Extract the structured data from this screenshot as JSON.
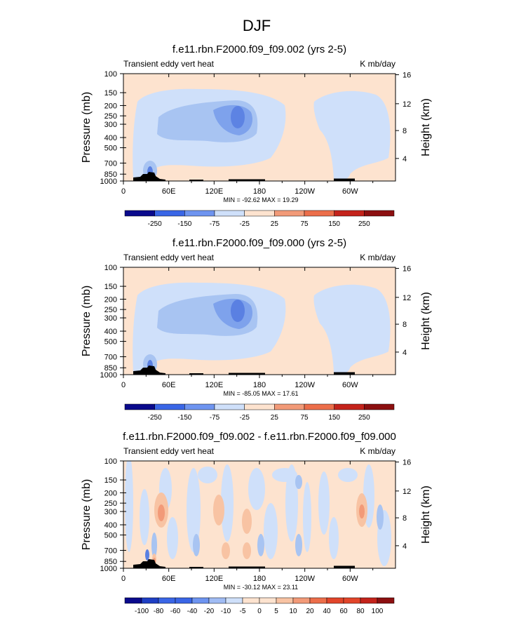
{
  "figure": {
    "title": "DJF"
  },
  "chart_data": [
    {
      "type": "heatmap",
      "title": "f.e11.rbn.F2000.f09_f09.002 (yrs 2-5)",
      "left_label": "Transient eddy vert heat",
      "right_label": "K mb/day",
      "ylabel": "Pressure (mb)",
      "ylabel_right": "Height (km)",
      "x_ticks": [
        "0",
        "60E",
        "120E",
        "180",
        "120W",
        "60W"
      ],
      "y_ticks": [
        "100",
        "150",
        "200",
        "250",
        "300",
        "400",
        "500",
        "700",
        "850",
        "1000"
      ],
      "y_ticks_right": [
        "16",
        "12",
        "8",
        "4"
      ],
      "stats": "MIN = -92.62  MAX = 19.29",
      "colorbar_labels": [
        "-250",
        "-150",
        "-75",
        "-25",
        "25",
        "75",
        "150",
        "250"
      ],
      "field": "mean"
    },
    {
      "type": "heatmap",
      "title": "f.e11.rbn.F2000.f09_f09.000 (yrs 2-5)",
      "left_label": "Transient eddy vert heat",
      "right_label": "K mb/day",
      "ylabel": "Pressure (mb)",
      "ylabel_right": "Height (km)",
      "x_ticks": [
        "0",
        "60E",
        "120E",
        "180",
        "120W",
        "60W"
      ],
      "y_ticks": [
        "100",
        "150",
        "200",
        "250",
        "300",
        "400",
        "500",
        "700",
        "850",
        "1000"
      ],
      "y_ticks_right": [
        "16",
        "12",
        "8",
        "4"
      ],
      "stats": "MIN = -85.05  MAX = 17.61",
      "colorbar_labels": [
        "-250",
        "-150",
        "-75",
        "-25",
        "25",
        "75",
        "150",
        "250"
      ],
      "field": "mean"
    },
    {
      "type": "heatmap",
      "title": "f.e11.rbn.F2000.f09_f09.002 - f.e11.rbn.F2000.f09_f09.000",
      "left_label": "Transient eddy vert heat",
      "right_label": "K mb/day",
      "ylabel": "Pressure (mb)",
      "ylabel_right": "Height (km)",
      "x_ticks": [
        "0",
        "60E",
        "120E",
        "180",
        "120W",
        "60W"
      ],
      "y_ticks": [
        "100",
        "150",
        "200",
        "250",
        "300",
        "400",
        "500",
        "700",
        "850",
        "1000"
      ],
      "y_ticks_right": [
        "16",
        "12",
        "8",
        "4"
      ],
      "stats": "MIN = -30.12  MAX = 23.11",
      "colorbar_labels": [
        "-100",
        "-80",
        "-60",
        "-40",
        "-20",
        "-10",
        "-5",
        "0",
        "5",
        "10",
        "20",
        "40",
        "60",
        "80",
        "100"
      ],
      "field": "diff"
    }
  ],
  "colors": {
    "scale": [
      "#0a0a8c",
      "#1f3fc4",
      "#3a66e6",
      "#6e94f0",
      "#a0bcf4",
      "#cfe0fa",
      "#fde3cf",
      "#f8c3a3",
      "#f29a78",
      "#ec6e4a",
      "#e2452a",
      "#c4231b",
      "#8c0f10"
    ],
    "light_blue": "#cfe0fa",
    "mid_blue": "#a8c4f2",
    "strong_blue": "#7ea2ec",
    "deep_blue": "#5a80e2",
    "light_orange": "#fde3cf",
    "mid_orange": "#f8c3a3",
    "strong_orange": "#f29a78",
    "terrain": "#000000"
  }
}
